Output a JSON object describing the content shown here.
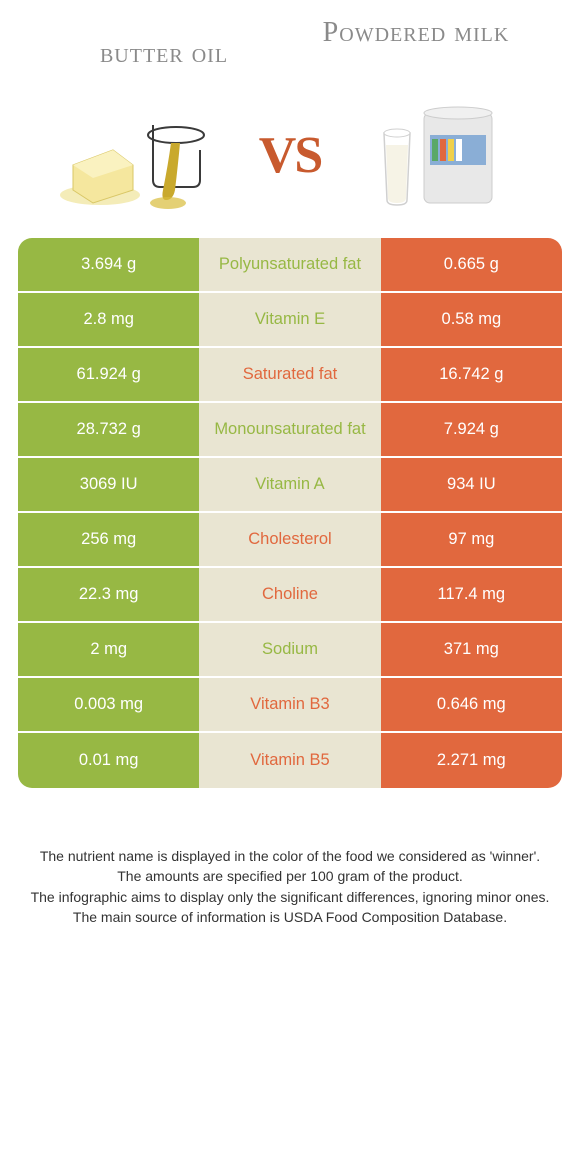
{
  "colors": {
    "left": "#97b844",
    "mid": "#e9e5d2",
    "right": "#e1683e",
    "winner_left_text": "#97b844",
    "winner_right_text": "#e1683e",
    "title_gray": "#8a8a8a"
  },
  "titles": {
    "left": "butter oil",
    "right": "Powdered milk"
  },
  "vs": "VS",
  "rows": [
    {
      "left": "3.694 g",
      "label": "Polyunsaturated fat",
      "right": "0.665 g",
      "winner": "left"
    },
    {
      "left": "2.8 mg",
      "label": "Vitamin E",
      "right": "0.58 mg",
      "winner": "left"
    },
    {
      "left": "61.924 g",
      "label": "Saturated fat",
      "right": "16.742 g",
      "winner": "right"
    },
    {
      "left": "28.732 g",
      "label": "Monounsaturated fat",
      "right": "7.924 g",
      "winner": "left"
    },
    {
      "left": "3069 IU",
      "label": "Vitamin A",
      "right": "934 IU",
      "winner": "left"
    },
    {
      "left": "256 mg",
      "label": "Cholesterol",
      "right": "97 mg",
      "winner": "right"
    },
    {
      "left": "22.3 mg",
      "label": "Choline",
      "right": "117.4 mg",
      "winner": "right"
    },
    {
      "left": "2 mg",
      "label": "Sodium",
      "right": "371 mg",
      "winner": "left"
    },
    {
      "left": "0.003 mg",
      "label": "Vitamin B3",
      "right": "0.646 mg",
      "winner": "right"
    },
    {
      "left": "0.01 mg",
      "label": "Vitamin B5",
      "right": "2.271 mg",
      "winner": "right"
    }
  ],
  "notes": [
    "The nutrient name is displayed in the color of the food we considered as 'winner'.",
    "The amounts are specified per 100 gram of the product.",
    "The infographic aims to display only the significant differences, ignoring minor ones.",
    "The main source of information is USDA Food Composition Database."
  ]
}
